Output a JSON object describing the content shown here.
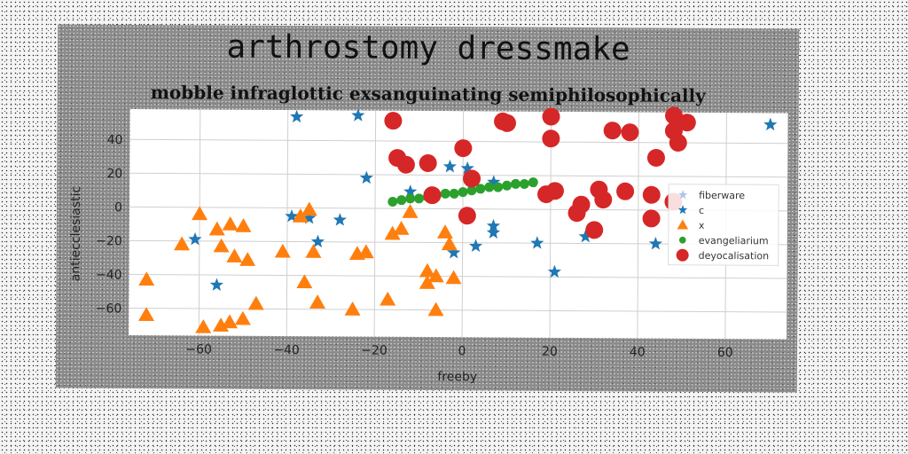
{
  "chart_data": {
    "type": "scatter",
    "suptitle": "arthrostomy dressmake",
    "title": "mobble infraglottic exsanguinating semiphilosophically",
    "xlabel": "freeby",
    "ylabel": "antiecclesiastic",
    "xlim": [
      -76,
      74
    ],
    "ylim": [
      -76,
      58
    ],
    "xticks": [
      -60,
      -40,
      -20,
      0,
      20,
      40,
      60
    ],
    "yticks": [
      -60,
      -40,
      -20,
      0,
      20,
      40
    ],
    "grid": true,
    "legend_position": "center-right",
    "series": [
      {
        "name": "fiberware",
        "marker": "star",
        "color": "#aec7e8",
        "points": []
      },
      {
        "name": "c",
        "marker": "star",
        "color": "#1f77b4",
        "points": [
          [
            -38,
            54
          ],
          [
            -24,
            55
          ],
          [
            70,
            51
          ],
          [
            -22,
            18
          ],
          [
            -12,
            10
          ],
          [
            -3,
            25
          ],
          [
            1,
            24
          ],
          [
            7,
            16
          ],
          [
            -39,
            -5
          ],
          [
            -28,
            -7
          ],
          [
            -35,
            -6
          ],
          [
            -61,
            -19
          ],
          [
            -33,
            -20
          ],
          [
            -56,
            -46
          ],
          [
            -2,
            -26
          ],
          [
            3,
            -22
          ],
          [
            7,
            -14
          ],
          [
            7,
            -10
          ],
          [
            17,
            -20
          ],
          [
            21,
            -37
          ],
          [
            28,
            -16
          ],
          [
            44,
            -20
          ]
        ]
      },
      {
        "name": "x",
        "marker": "triangle",
        "color": "#ff7f0e",
        "points": [
          [
            -60,
            -4
          ],
          [
            -56,
            -13
          ],
          [
            -53,
            -10
          ],
          [
            -50,
            -11
          ],
          [
            -64,
            -22
          ],
          [
            -55,
            -23
          ],
          [
            -52,
            -29
          ],
          [
            -49,
            -31
          ],
          [
            -41,
            -26
          ],
          [
            -37,
            -5
          ],
          [
            -35,
            -1
          ],
          [
            -47,
            -57
          ],
          [
            -50,
            -66
          ],
          [
            -53,
            -68
          ],
          [
            -55,
            -70
          ],
          [
            -59,
            -71
          ],
          [
            -72,
            -43
          ],
          [
            -72,
            -64
          ],
          [
            -36,
            -44
          ],
          [
            -33,
            -56
          ],
          [
            -34,
            -26
          ],
          [
            -25,
            -60
          ],
          [
            -24,
            -27
          ],
          [
            -22,
            -26
          ],
          [
            -16,
            -15
          ],
          [
            -14,
            -12
          ],
          [
            -12,
            -2
          ],
          [
            -17,
            -54
          ],
          [
            -8,
            -37
          ],
          [
            -8,
            -44
          ],
          [
            -6,
            -40
          ],
          [
            -4,
            -14
          ],
          [
            -3,
            -21
          ],
          [
            -2,
            -41
          ],
          [
            -6,
            -60
          ]
        ]
      },
      {
        "name": "evangeliarium",
        "marker": "circle-small",
        "color": "#2ca02c",
        "points": [
          [
            -16,
            4
          ],
          [
            -14,
            5
          ],
          [
            -12,
            6
          ],
          [
            -10,
            6
          ],
          [
            -8,
            7
          ],
          [
            -6,
            8
          ],
          [
            -4,
            9
          ],
          [
            -2,
            9
          ],
          [
            0,
            10
          ],
          [
            2,
            11
          ],
          [
            4,
            12
          ],
          [
            6,
            13
          ],
          [
            8,
            13
          ],
          [
            10,
            14
          ],
          [
            12,
            15
          ],
          [
            14,
            15
          ],
          [
            16,
            16
          ]
        ]
      },
      {
        "name": "deyocalisation",
        "marker": "circle",
        "color": "#d62728",
        "points": [
          [
            -16,
            52
          ],
          [
            9,
            52
          ],
          [
            20,
            55
          ],
          [
            10,
            51
          ],
          [
            20,
            42
          ],
          [
            34,
            47
          ],
          [
            38,
            46
          ],
          [
            48,
            56
          ],
          [
            51,
            52
          ],
          [
            48,
            47
          ],
          [
            49,
            40
          ],
          [
            44,
            31
          ],
          [
            0,
            36
          ],
          [
            -15,
            30
          ],
          [
            -13,
            26
          ],
          [
            -8,
            27
          ],
          [
            2,
            18
          ],
          [
            -7,
            8
          ],
          [
            19,
            9
          ],
          [
            21,
            11
          ],
          [
            27,
            3
          ],
          [
            26,
            -2
          ],
          [
            31,
            12
          ],
          [
            32,
            6
          ],
          [
            37,
            11
          ],
          [
            43,
            9
          ],
          [
            48,
            5
          ],
          [
            30,
            -12
          ],
          [
            43,
            -5
          ],
          [
            1,
            -4
          ]
        ]
      }
    ]
  }
}
